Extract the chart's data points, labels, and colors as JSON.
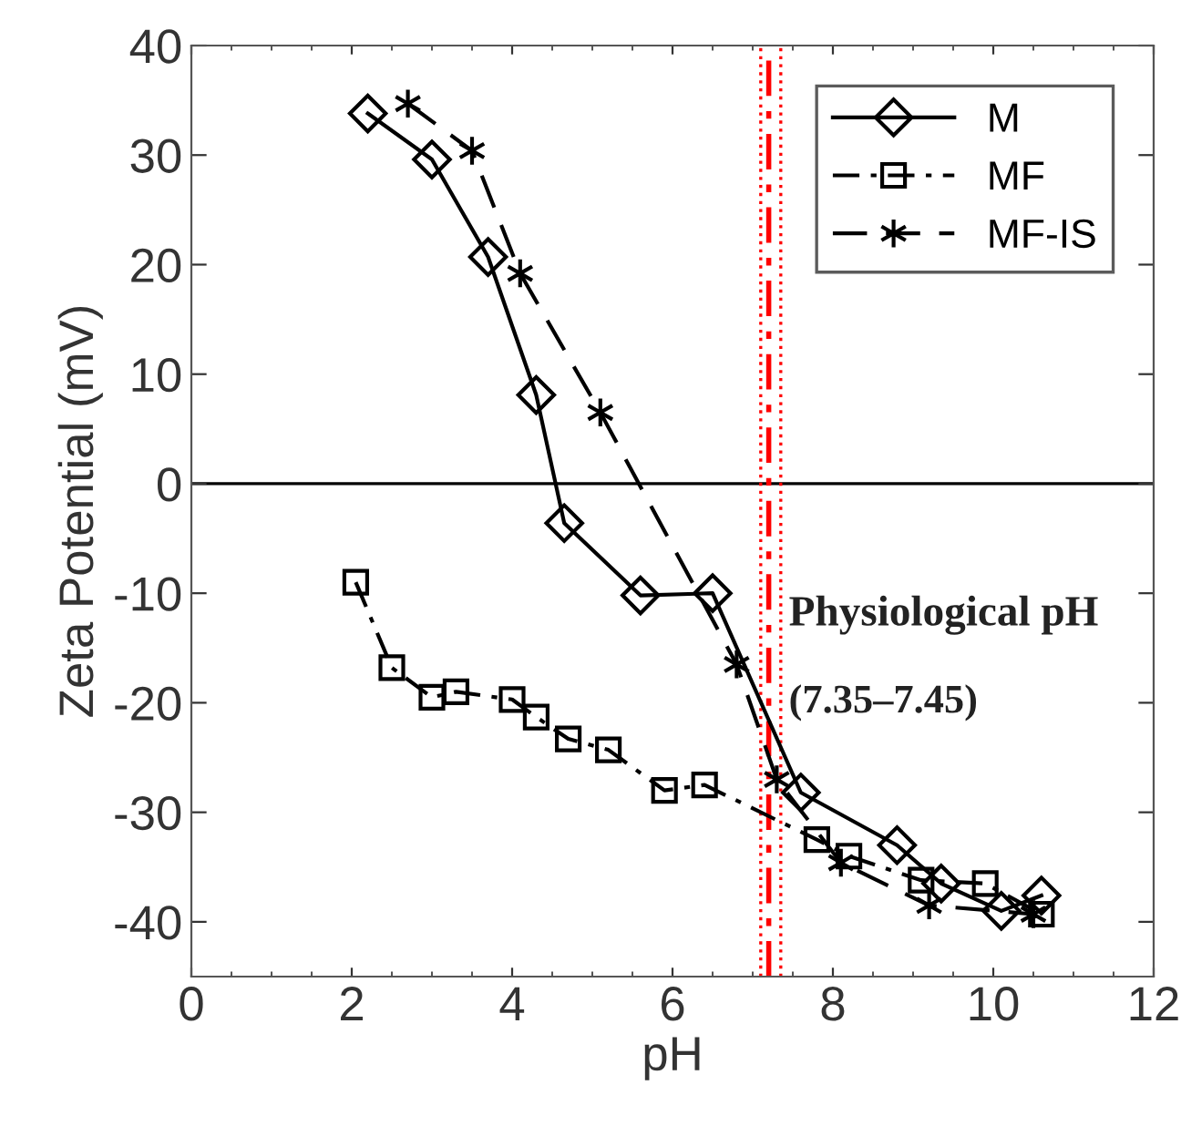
{
  "chart_data": {
    "type": "line",
    "xlabel": "pH",
    "ylabel": "Zeta Potential (mV)",
    "xlim": [
      0,
      12
    ],
    "xticks": [
      0,
      2,
      4,
      6,
      8,
      10,
      12
    ],
    "ylim": [
      -45,
      40
    ],
    "yticks": [
      -40,
      -30,
      -20,
      -10,
      0,
      10,
      20,
      30,
      40
    ],
    "legend": "top right",
    "grid": false,
    "series": [
      {
        "name": "M",
        "color": "#000000",
        "marker": "diamond",
        "line_style": "solid",
        "x": [
          2.2,
          3.0,
          3.7,
          4.3,
          4.65,
          5.6,
          6.5,
          7.6,
          8.8,
          9.35,
          10.1,
          10.6
        ],
        "values": [
          33.8,
          29.6,
          20.7,
          8.1,
          -3.6,
          -10.2,
          -10.0,
          -28.2,
          -33.0,
          -36.5,
          -39.0,
          -37.6
        ]
      },
      {
        "name": "MF",
        "color": "#000000",
        "marker": "square",
        "line_style": "dashdot",
        "x": [
          2.05,
          2.5,
          3.0,
          3.3,
          4.0,
          4.3,
          4.7,
          5.2,
          5.9,
          6.4,
          7.8,
          8.2,
          9.1,
          9.9,
          10.6
        ],
        "values": [
          -9,
          -16.8,
          -19.5,
          -19.0,
          -19.7,
          -21.3,
          -23.3,
          -24.3,
          -28,
          -27.5,
          -32.5,
          -34,
          -36.2,
          -36.5,
          -39.3
        ]
      },
      {
        "name": "MF-IS",
        "color": "#000000",
        "marker": "cross",
        "line_style": "dashed",
        "x": [
          2.7,
          3.5,
          4.1,
          5.1,
          6.8,
          7.3,
          8.1,
          9.2,
          10.5
        ],
        "values": [
          34.7,
          30.4,
          19.2,
          6.5,
          -16.5,
          -27,
          -34.6,
          -38.5,
          -39.3
        ]
      }
    ],
    "ref_lines": [
      {
        "axis": "y",
        "value": 0,
        "color": "#000000",
        "line_style": "solid"
      },
      {
        "axis": "x",
        "value": 7.2,
        "color": "#ff0000",
        "line_style": "dashdot"
      },
      {
        "axis": "x",
        "value": 7.1,
        "color": "#ff0000",
        "line_style": "dotted"
      },
      {
        "axis": "x",
        "value": 7.35,
        "color": "#ff0000",
        "line_style": "dotted"
      }
    ],
    "annotations": [
      "Physiological pH",
      "(7.35–7.45)"
    ]
  }
}
